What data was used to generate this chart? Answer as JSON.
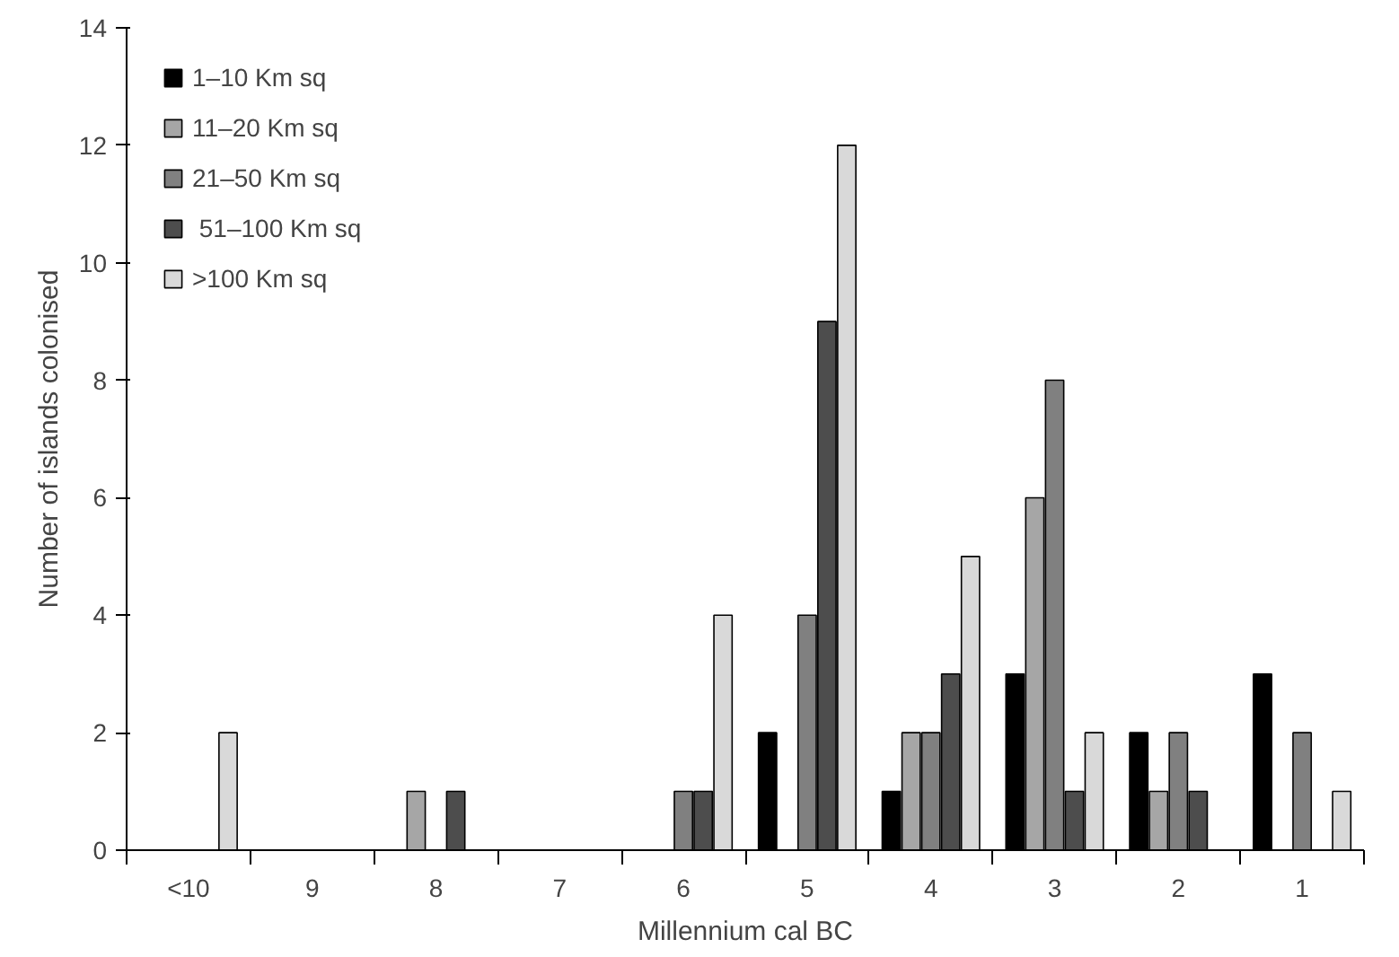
{
  "chart_data": {
    "type": "bar",
    "xlabel": "Millennium cal BC",
    "ylabel": "Number of islands colonised",
    "categories": [
      "<10",
      "9",
      "8",
      "7",
      "6",
      "5",
      "4",
      "3",
      "2",
      "1"
    ],
    "series": [
      {
        "name": "1–10 Km sq",
        "color": "#000000",
        "values": [
          0,
          0,
          0,
          0,
          0,
          2,
          1,
          3,
          2,
          3
        ]
      },
      {
        "name": "11–20 Km sq",
        "color": "#a6a6a6",
        "values": [
          0,
          0,
          1,
          0,
          0,
          0,
          2,
          6,
          1,
          0
        ]
      },
      {
        "name": "21–50 Km sq",
        "color": "#808080",
        "values": [
          0,
          0,
          0,
          0,
          1,
          4,
          2,
          8,
          2,
          2
        ]
      },
      {
        "name": " 51–100 Km sq",
        "color": "#4d4d4d",
        "values": [
          0,
          0,
          1,
          0,
          1,
          9,
          3,
          1,
          1,
          0
        ]
      },
      {
        "name": ">100 Km sq",
        "color": "#d9d9d9",
        "values": [
          2,
          0,
          0,
          0,
          4,
          12,
          5,
          2,
          0,
          1
        ]
      }
    ],
    "ylim": [
      0,
      14
    ],
    "yticks": [
      0,
      2,
      4,
      6,
      8,
      10,
      12,
      14
    ],
    "grid": false,
    "legend": "top left"
  }
}
